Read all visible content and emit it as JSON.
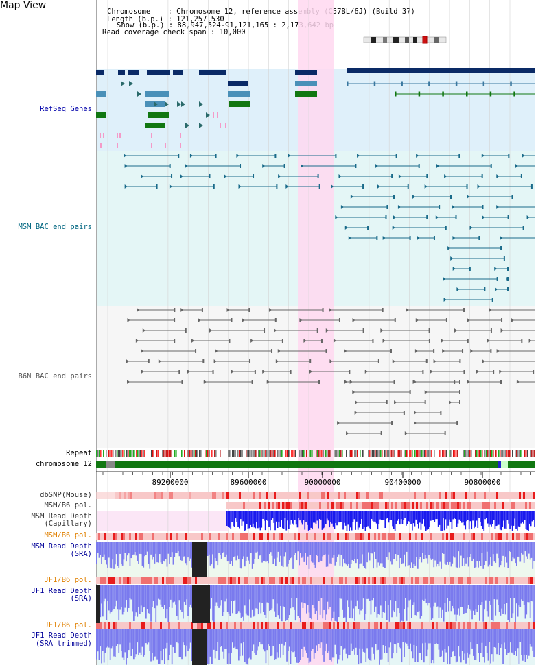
{
  "page": {
    "title": "Map View"
  },
  "info": {
    "chromosome_label": "Chromosome    ",
    "chromosome_value": "Chromosome 12, reference assembly (C57BL/6J) (Build 37)",
    "length_label": "Length (b.p.)",
    "length_value": "121,257,530",
    "show_label": "Show (b.p.)",
    "show_value": "88,947,524-91,121,165 : 2,173,642 bp",
    "coverage_label": "Read coverage check span",
    "coverage_value": "10,000"
  },
  "tracks": {
    "refseq": "RefSeq Genes",
    "msm_bac": "MSM BAC end pairs",
    "b6n_bac": "B6N BAC end pairs",
    "repeat": "Repeat",
    "chromosome": "chromosome 12",
    "dbsnp": "dbSNP(Mouse)",
    "msm_b6_pol_1": "MSM/B6 pol.",
    "msm_depth_cap_1": "MSM Read Depth",
    "msm_depth_cap_2": "(Capillary)",
    "msm_b6_pol_2": "MSM/B6 pol.",
    "msm_depth_sra_1": "MSM Read Depth",
    "msm_depth_sra_2": "(SRA)",
    "jf1_b6_pol_1": "JF1/B6 pol.",
    "jf1_depth_sra_1": "JF1 Read Depth",
    "jf1_depth_sra_2": "(SRA)",
    "jf1_b6_pol_2": "JF1/B6 pol.",
    "jf1_depth_trim_1": "JF1 Read Depth",
    "jf1_depth_trim_2": "(SRA trimmed)"
  },
  "axis": {
    "ticks": [
      "89200000",
      "89600000",
      "90000000",
      "90400000",
      "90800000"
    ]
  },
  "colors": {
    "refseq_label": "#0000aa",
    "msm_bac_label": "#006680",
    "b6n_label": "#555555",
    "pol_label": "#e08000",
    "depth_label": "#000099",
    "highlight": "#ffd8f0",
    "gene_navy": "#0a2a66",
    "gene_steel": "#4a90b8",
    "gene_green": "#117711",
    "bac_teal": "#1a6b8a",
    "bac_gray": "#666666",
    "chrom_green": "#117711",
    "depth_blue": "#1a1aee",
    "depth_light": "#7a7aee"
  }
}
